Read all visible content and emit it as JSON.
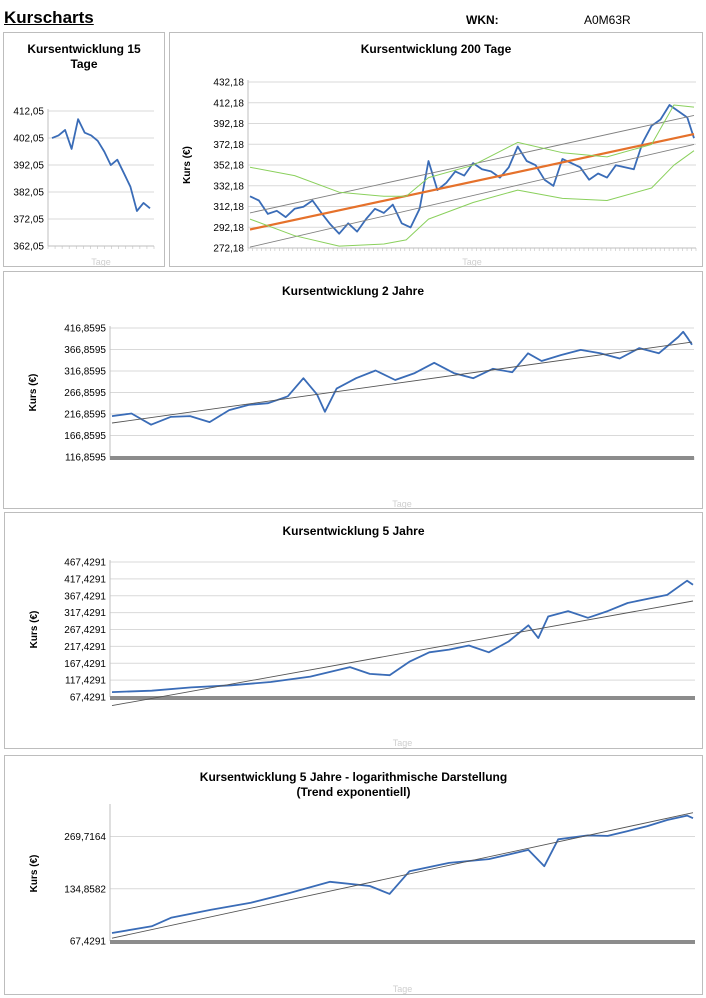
{
  "header": {
    "title": "Kurscharts",
    "wkn_label": "WKN:",
    "wkn_value": "A0M63R"
  },
  "chart_data": [
    {
      "id": "c15",
      "type": "line",
      "title_lines": [
        "Kursentwicklung 15",
        "Tage"
      ],
      "xlabel": "Tage",
      "ylabel": "",
      "ylim": [
        362.05,
        412.05
      ],
      "ytick_labels": [
        "412,05",
        "402,05",
        "392,05",
        "382,05",
        "372,05",
        "362,05"
      ],
      "series": [
        {
          "name": "Kurs",
          "color": "#3a6cb7",
          "values": [
            402,
            403,
            405,
            398,
            409,
            404,
            403,
            401,
            397,
            392,
            394,
            389,
            384,
            375,
            378,
            376
          ]
        }
      ]
    },
    {
      "id": "c200",
      "type": "line",
      "title_lines": [
        "Kursentwicklung 200 Tage"
      ],
      "xlabel": "Tage",
      "ylabel": "Kurs (€)",
      "ylim": [
        272.18,
        432.18
      ],
      "ytick_labels": [
        "432,18",
        "412,18",
        "392,18",
        "372,18",
        "352,18",
        "332,18",
        "312,18",
        "292,18",
        "272,18"
      ],
      "series": [
        {
          "name": "Kurs",
          "color": "#3a6cb7",
          "points": [
            [
              0,
              322
            ],
            [
              4,
              318
            ],
            [
              8,
              305
            ],
            [
              12,
              308
            ],
            [
              16,
              302
            ],
            [
              20,
              310
            ],
            [
              24,
              312
            ],
            [
              28,
              318
            ],
            [
              32,
              306
            ],
            [
              36,
              295
            ],
            [
              40,
              286
            ],
            [
              44,
              296
            ],
            [
              48,
              288
            ],
            [
              52,
              300
            ],
            [
              56,
              310
            ],
            [
              60,
              306
            ],
            [
              64,
              314
            ],
            [
              68,
              296
            ],
            [
              72,
              292
            ],
            [
              76,
              310
            ],
            [
              80,
              356
            ],
            [
              84,
              328
            ],
            [
              88,
              335
            ],
            [
              92,
              346
            ],
            [
              96,
              342
            ],
            [
              100,
              354
            ],
            [
              104,
              348
            ],
            [
              108,
              346
            ],
            [
              112,
              340
            ],
            [
              116,
              350
            ],
            [
              120,
              370
            ],
            [
              124,
              356
            ],
            [
              128,
              352
            ],
            [
              132,
              338
            ],
            [
              136,
              332
            ],
            [
              140,
              358
            ],
            [
              144,
              354
            ],
            [
              148,
              350
            ],
            [
              152,
              338
            ],
            [
              156,
              344
            ],
            [
              160,
              340
            ],
            [
              164,
              352
            ],
            [
              168,
              350
            ],
            [
              172,
              348
            ],
            [
              176,
              374
            ],
            [
              180,
              390
            ],
            [
              184,
              396
            ],
            [
              188,
              410
            ],
            [
              192,
              404
            ],
            [
              196,
              398
            ],
            [
              199,
              378
            ]
          ]
        },
        {
          "name": "Trend",
          "color": "#e5712b",
          "points": [
            [
              0,
              290
            ],
            [
              199,
              382
            ]
          ]
        },
        {
          "name": "Trendkanal oben",
          "color": "#808080",
          "points": [
            [
              0,
              306
            ],
            [
              199,
              400
            ]
          ]
        },
        {
          "name": "Trendkanal unten",
          "color": "#808080",
          "points": [
            [
              0,
              273
            ],
            [
              199,
              372
            ]
          ]
        },
        {
          "name": "Band oben",
          "color": "#8ad05c",
          "points": [
            [
              0,
              350
            ],
            [
              20,
              342
            ],
            [
              40,
              326
            ],
            [
              60,
              322
            ],
            [
              70,
              322
            ],
            [
              80,
              340
            ],
            [
              100,
              352
            ],
            [
              120,
              374
            ],
            [
              140,
              364
            ],
            [
              160,
              360
            ],
            [
              180,
              372
            ],
            [
              190,
              410
            ],
            [
              199,
              408
            ]
          ]
        },
        {
          "name": "Band unten",
          "color": "#8ad05c",
          "points": [
            [
              0,
              300
            ],
            [
              20,
              284
            ],
            [
              40,
              274
            ],
            [
              60,
              276
            ],
            [
              70,
              280
            ],
            [
              80,
              300
            ],
            [
              100,
              316
            ],
            [
              120,
              328
            ],
            [
              140,
              320
            ],
            [
              160,
              318
            ],
            [
              180,
              330
            ],
            [
              190,
              352
            ],
            [
              199,
              366
            ]
          ]
        }
      ]
    },
    {
      "id": "c2y",
      "type": "line",
      "title_lines": [
        "Kursentwicklung 2 Jahre"
      ],
      "xlabel": "Tage",
      "ylabel": "Kurs (€)",
      "ylim": [
        116.8595,
        416.8595
      ],
      "ytick_labels": [
        "416,8595",
        "366,8595",
        "316,8595",
        "266,8595",
        "216,8595",
        "166,8595",
        "116,8595"
      ],
      "series": [
        {
          "name": "Kurs",
          "color": "#3a6cb7",
          "points": [
            [
              0,
              212
            ],
            [
              20,
              218
            ],
            [
              40,
              192
            ],
            [
              60,
              210
            ],
            [
              80,
              212
            ],
            [
              100,
              198
            ],
            [
              120,
              226
            ],
            [
              140,
              238
            ],
            [
              160,
              242
            ],
            [
              180,
              258
            ],
            [
              196,
              300
            ],
            [
              210,
              262
            ],
            [
              218,
              222
            ],
            [
              230,
              276
            ],
            [
              250,
              300
            ],
            [
              270,
              318
            ],
            [
              290,
              296
            ],
            [
              310,
              312
            ],
            [
              330,
              336
            ],
            [
              350,
              312
            ],
            [
              370,
              300
            ],
            [
              390,
              322
            ],
            [
              410,
              314
            ],
            [
              426,
              358
            ],
            [
              440,
              340
            ],
            [
              460,
              354
            ],
            [
              480,
              366
            ],
            [
              500,
              358
            ],
            [
              520,
              346
            ],
            [
              540,
              370
            ],
            [
              560,
              358
            ],
            [
              580,
              396
            ],
            [
              585,
              408
            ],
            [
              590,
              392
            ],
            [
              594,
              378
            ]
          ]
        },
        {
          "name": "Trend",
          "color": "#555555",
          "points": [
            [
              0,
              196
            ],
            [
              594,
              384
            ]
          ]
        }
      ]
    },
    {
      "id": "c5y",
      "type": "line",
      "title_lines": [
        "Kursentwicklung 5 Jahre"
      ],
      "xlabel": "Tage",
      "ylabel": "Kurs (€)",
      "ylim": [
        67.4291,
        467.4291
      ],
      "ytick_labels": [
        "467,4291",
        "417,4291",
        "367,4291",
        "317,4291",
        "267,4291",
        "217,4291",
        "167,4291",
        "117,4291",
        "67,4291"
      ],
      "series": [
        {
          "name": "Kurs",
          "color": "#3a6cb7",
          "points": [
            [
              0,
              82
            ],
            [
              40,
              86
            ],
            [
              80,
              96
            ],
            [
              120,
              102
            ],
            [
              160,
              112
            ],
            [
              200,
              128
            ],
            [
              240,
              156
            ],
            [
              260,
              136
            ],
            [
              280,
              132
            ],
            [
              300,
              172
            ],
            [
              320,
              200
            ],
            [
              340,
              208
            ],
            [
              360,
              220
            ],
            [
              380,
              200
            ],
            [
              400,
              232
            ],
            [
              420,
              280
            ],
            [
              430,
              242
            ],
            [
              440,
              306
            ],
            [
              460,
              322
            ],
            [
              480,
              302
            ],
            [
              500,
              322
            ],
            [
              520,
              346
            ],
            [
              540,
              358
            ],
            [
              560,
              370
            ],
            [
              580,
              412
            ],
            [
              586,
              400
            ]
          ]
        },
        {
          "name": "Trend",
          "color": "#555555",
          "points": [
            [
              0,
              42
            ],
            [
              586,
              352
            ]
          ]
        }
      ]
    },
    {
      "id": "c5ylog",
      "type": "line",
      "title_lines": [
        "Kursentwicklung 5 Jahre - logarithmische Darstellung",
        "(Trend exponentiell)"
      ],
      "xlabel": "Tage",
      "ylabel": "Kurs (€)",
      "log_scale": true,
      "ylim": [
        67.4291,
        404.6
      ],
      "ytick_labels": [
        "269,7164",
        "134,8582",
        "67,4291"
      ],
      "series": [
        {
          "name": "Kurs",
          "color": "#3a6cb7",
          "points": [
            [
              0,
              75
            ],
            [
              40,
              82
            ],
            [
              60,
              92
            ],
            [
              100,
              102
            ],
            [
              140,
              112
            ],
            [
              180,
              128
            ],
            [
              220,
              148
            ],
            [
              260,
              140
            ],
            [
              280,
              126
            ],
            [
              300,
              170
            ],
            [
              340,
              190
            ],
            [
              380,
              200
            ],
            [
              420,
              226
            ],
            [
              436,
              182
            ],
            [
              450,
              260
            ],
            [
              480,
              274
            ],
            [
              500,
              272
            ],
            [
              520,
              290
            ],
            [
              540,
              310
            ],
            [
              560,
              336
            ],
            [
              580,
              356
            ],
            [
              586,
              344
            ]
          ]
        },
        {
          "name": "Trend",
          "color": "#555555",
          "points": [
            [
              0,
              70
            ],
            [
              586,
              370
            ]
          ]
        }
      ]
    }
  ]
}
